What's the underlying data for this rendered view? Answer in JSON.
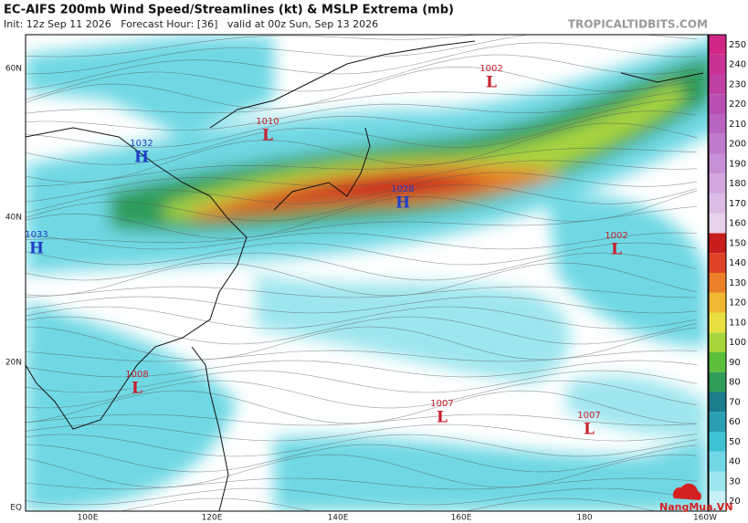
{
  "header": {
    "title": "EC-AIFS 200mb Wind Speed/Streamlines (kt) & MSLP Extrema (mb)",
    "subtitle": "Init: 12z Sep 11 2026   Forecast Hour: [36]   valid at 00z Sun, Sep 13 2026",
    "brand": "TROPICALTIDBITS.COM"
  },
  "map": {
    "lat_labels": [
      "60N",
      "40N",
      "20N",
      "EQ"
    ],
    "lon_labels": [
      "100E",
      "120E",
      "140E",
      "160E",
      "180",
      "160W"
    ],
    "center_colors": {
      "H": "#1f3fc7",
      "L": "#c8202e"
    },
    "pressure_centers": [
      {
        "letter": "L",
        "value": 1002
      },
      {
        "letter": "L",
        "value": 1010
      },
      {
        "letter": "H",
        "value": 1032
      },
      {
        "letter": "H",
        "value": 1028
      },
      {
        "letter": "H",
        "value": 1033
      },
      {
        "letter": "L",
        "value": 1002
      },
      {
        "letter": "L",
        "value": 1008
      },
      {
        "letter": "L",
        "value": 1007
      },
      {
        "letter": "L",
        "value": 1007
      }
    ]
  },
  "colorbar": {
    "ticks": [
      20,
      30,
      40,
      50,
      60,
      70,
      80,
      90,
      100,
      110,
      120,
      130,
      140,
      150,
      160,
      170,
      180,
      190,
      200,
      210,
      220,
      230,
      240,
      250
    ],
    "colors": [
      "#c8f0f4",
      "#9ee6ee",
      "#6fd8e4",
      "#3fc2d4",
      "#2a9fb4",
      "#1c7d8c",
      "#2f9c5a",
      "#5cbf3c",
      "#a8d43c",
      "#e8e040",
      "#f0b830",
      "#ec8028",
      "#e04428",
      "#c81e1e",
      "#e6d2ea",
      "#dcbce4",
      "#d2a6de",
      "#c890d6",
      "#c07acc",
      "#ba64c2",
      "#b850b4",
      "#c040a4",
      "#c83294",
      "#d02686"
    ]
  },
  "watermark": "NangMua.VN"
}
